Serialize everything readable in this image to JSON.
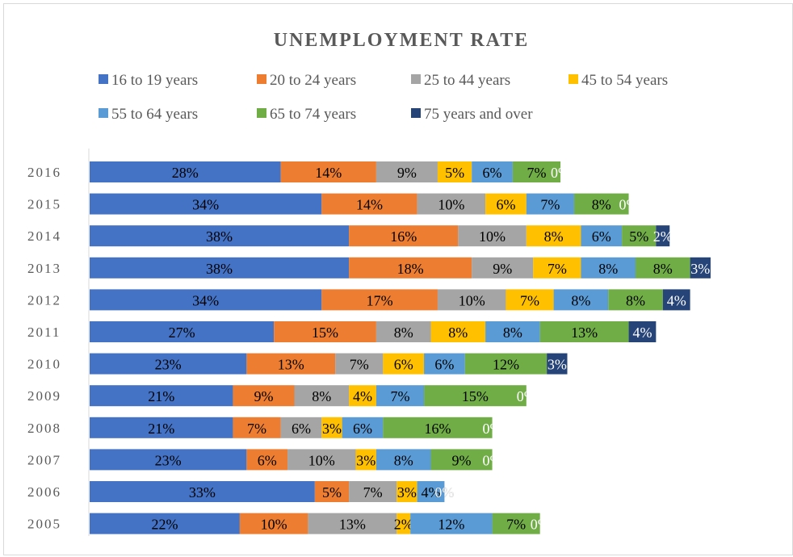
{
  "chart_data": {
    "type": "bar",
    "orientation": "horizontal",
    "stacked": true,
    "title": "UNEMPLOYMENT RATE",
    "legend_position": "top",
    "grid": false,
    "categories": [
      "2016",
      "2015",
      "2014",
      "2013",
      "2012",
      "2011",
      "2010",
      "2009",
      "2008",
      "2007",
      "2006",
      "2005"
    ],
    "series": [
      {
        "name": "16 to 19 years",
        "color": "#4472C4",
        "label_color": "#000000",
        "values": [
          28,
          34,
          38,
          38,
          34,
          27,
          23,
          21,
          21,
          23,
          33,
          22
        ]
      },
      {
        "name": "20 to 24 years",
        "color": "#ED7D31",
        "label_color": "#000000",
        "values": [
          14,
          14,
          16,
          18,
          17,
          15,
          13,
          9,
          7,
          6,
          5,
          10
        ]
      },
      {
        "name": "25 to 44 years",
        "color": "#A5A5A5",
        "label_color": "#000000",
        "values": [
          9,
          10,
          10,
          9,
          10,
          8,
          7,
          8,
          6,
          10,
          7,
          13
        ]
      },
      {
        "name": "45 to 54 years",
        "color": "#FFC000",
        "label_color": "#000000",
        "values": [
          5,
          6,
          8,
          7,
          7,
          8,
          6,
          4,
          3,
          3,
          3,
          2
        ]
      },
      {
        "name": "55 to 64 years",
        "color": "#5B9BD5",
        "label_color": "#000000",
        "values": [
          6,
          7,
          6,
          8,
          8,
          8,
          6,
          7,
          6,
          8,
          4,
          12
        ]
      },
      {
        "name": "65 to 74 years",
        "color": "#70AD47",
        "label_color": "#000000",
        "values": [
          7,
          8,
          5,
          8,
          8,
          13,
          12,
          15,
          16,
          9,
          0,
          7
        ]
      },
      {
        "name": "75 years and over",
        "color": "#264478",
        "label_color": "#ffffff",
        "values": [
          0,
          0,
          2,
          3,
          4,
          4,
          3,
          0,
          0,
          0,
          0,
          0
        ]
      }
    ],
    "data_labels": [
      [
        "28%",
        "14%",
        "9%",
        "5%",
        "6%",
        "7%",
        "0%"
      ],
      [
        "34%",
        "14%",
        "10%",
        "6%",
        "7%",
        "8%",
        "0%"
      ],
      [
        "38%",
        "16%",
        "10%",
        "8%",
        "6%",
        "5%",
        "2%"
      ],
      [
        "38%",
        "18%",
        "9%",
        "7%",
        "8%",
        "8%",
        "3%"
      ],
      [
        "34%",
        "17%",
        "10%",
        "7%",
        "8%",
        "8%",
        "4%"
      ],
      [
        "27%",
        "15%",
        "8%",
        "8%",
        "8%",
        "13%",
        "4%"
      ],
      [
        "23%",
        "13%",
        "7%",
        "6%",
        "6%",
        "12%",
        "3%"
      ],
      [
        "21%",
        "9%",
        "8%",
        "4%",
        "7%",
        "15%",
        "0%"
      ],
      [
        "21%",
        "7%",
        "6%",
        "3%",
        "6%",
        "16%",
        "0%"
      ],
      [
        "23%",
        "6%",
        "10%",
        "3%",
        "8%",
        "9%",
        "0%"
      ],
      [
        "33%",
        "5%",
        "7%",
        "3%",
        "4%",
        "0%",
        "0%"
      ],
      [
        "22%",
        "10%",
        "13%",
        "2%",
        "12%",
        "7%",
        "0%"
      ]
    ]
  }
}
